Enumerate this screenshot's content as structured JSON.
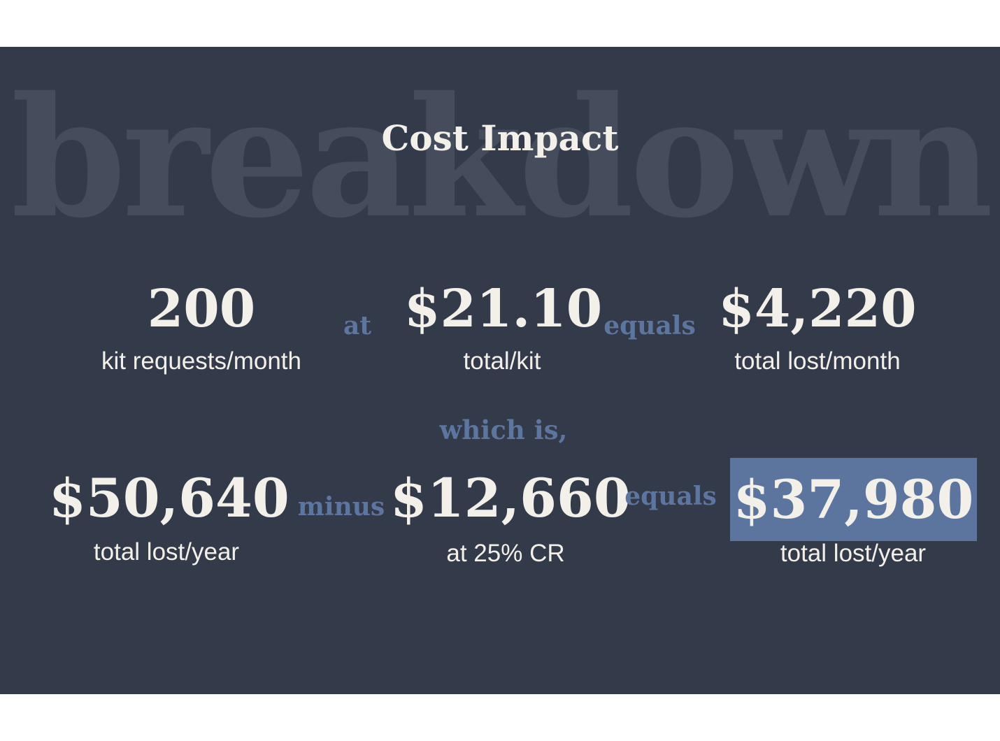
{
  "watermark": "breakdown",
  "title": "Cost Impact",
  "row1": {
    "requests": {
      "value": "200",
      "label": "kit requests/month"
    },
    "connector_at": "at",
    "per_kit": {
      "value": "$21.10",
      "label": "total/kit"
    },
    "connector_equals": "equals",
    "monthly": {
      "value": "$4,220",
      "label": "total lost/month"
    }
  },
  "transition": "which is,",
  "row2": {
    "yearly": {
      "value": "$50,640",
      "label": "total lost/year"
    },
    "connector_minus": "minus",
    "recovered": {
      "value": "$12,660",
      "label": "at 25% CR"
    },
    "connector_equals": "equals",
    "net": {
      "value": "$37,980",
      "label": "total lost/year"
    }
  },
  "colors": {
    "background": "#333a4a",
    "text": "#f3efe9",
    "accent": "#5b759f",
    "watermark": "#454d5d"
  }
}
